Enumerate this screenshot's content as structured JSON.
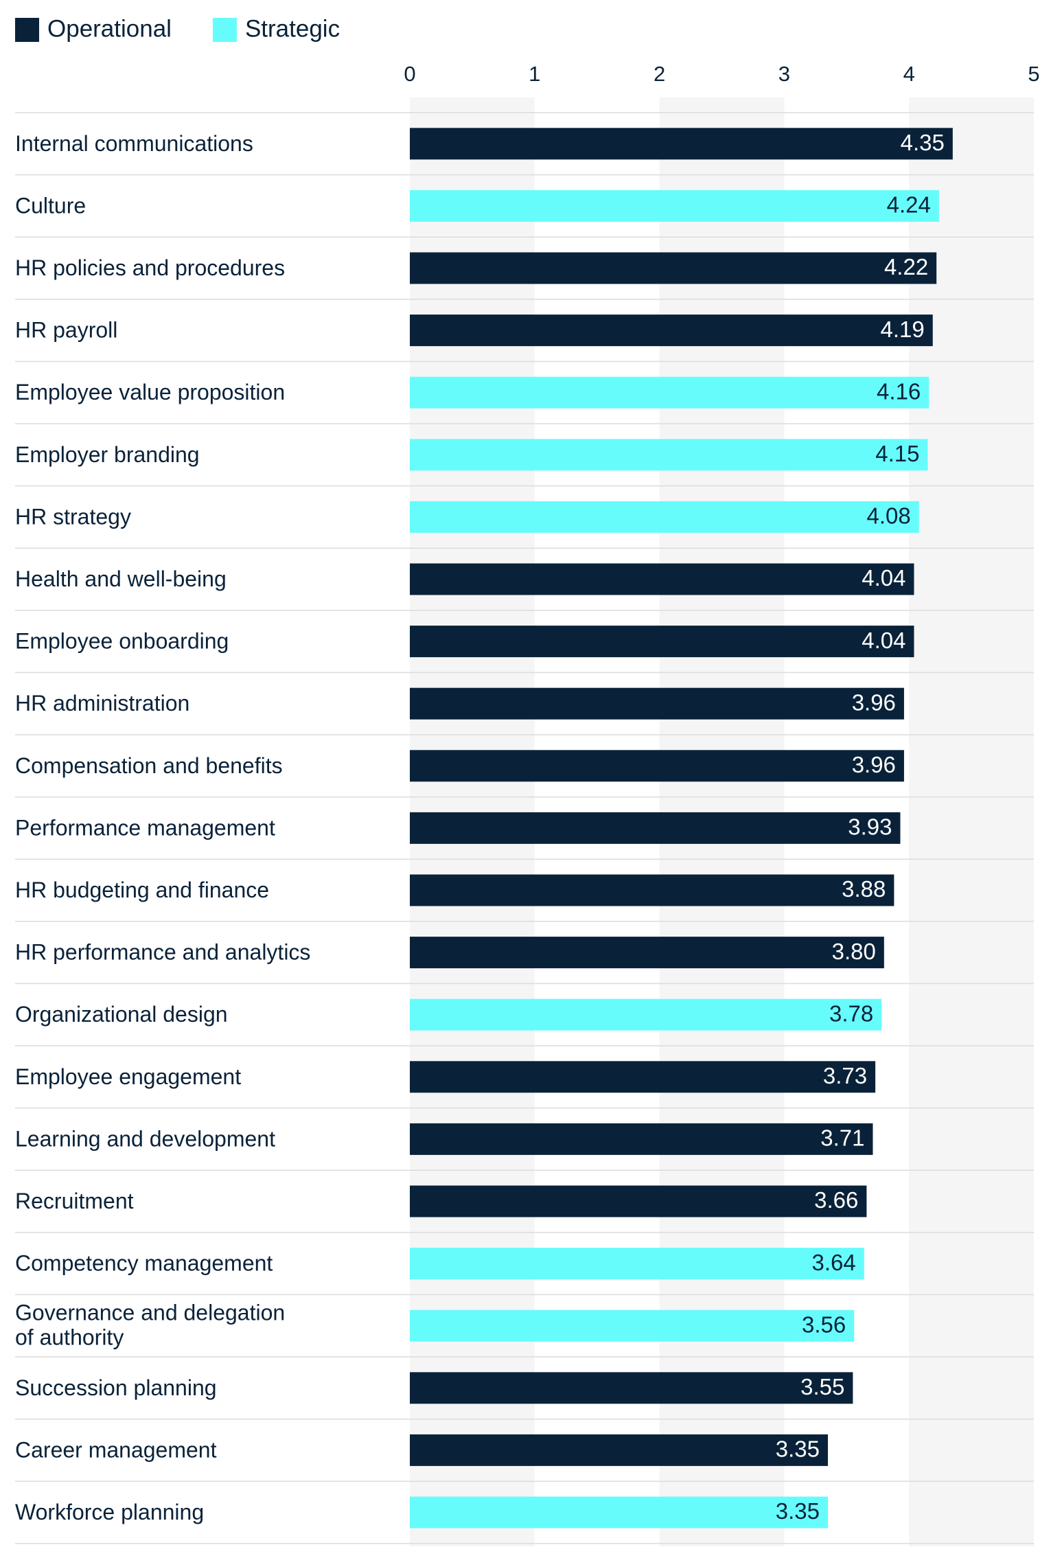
{
  "chart_data": {
    "type": "hbar",
    "categories": [
      "Internal communications",
      "Culture",
      "HR policies and procedures",
      "HR payroll",
      "Employee value proposition",
      "Employer branding",
      "HR strategy",
      "Health and well-being",
      "Employee onboarding",
      "HR administration",
      "Compensation and benefits",
      "Performance management",
      "HR budgeting and finance",
      "HR performance and analytics",
      "Organizational design",
      "Employee engagement",
      "Learning and development",
      "Recruitment",
      "Competency management",
      "Governance and delegation\nof authority",
      "Succession planning",
      "Career management",
      "Workforce planning"
    ],
    "series": [
      {
        "name": "Operational",
        "color": "#0a2239",
        "label_color": "#ffffff",
        "values": [
          4.35,
          null,
          4.22,
          4.19,
          null,
          null,
          null,
          4.04,
          4.04,
          3.96,
          3.96,
          3.93,
          3.88,
          3.8,
          null,
          3.73,
          3.71,
          3.66,
          null,
          null,
          3.55,
          3.35,
          null
        ],
        "value_labels": [
          "4.35",
          null,
          "4.22",
          "4.19",
          null,
          null,
          null,
          "4.04",
          "4.04",
          "3.96",
          "3.96",
          "3.93",
          "3.88",
          "3.80",
          null,
          "3.73",
          "3.71",
          "3.66",
          null,
          null,
          "3.55",
          "3.35",
          null
        ]
      },
      {
        "name": "Strategic",
        "color": "#66fcfc",
        "label_color": "#0a2239",
        "values": [
          null,
          4.24,
          null,
          null,
          4.16,
          4.15,
          4.08,
          null,
          null,
          null,
          null,
          null,
          null,
          null,
          3.78,
          null,
          null,
          null,
          3.64,
          3.56,
          null,
          null,
          3.35
        ],
        "value_labels": [
          null,
          "4.24",
          null,
          null,
          "4.16",
          "4.15",
          "4.08",
          null,
          null,
          null,
          null,
          null,
          null,
          null,
          "3.78",
          null,
          null,
          null,
          "3.64",
          "3.56",
          null,
          null,
          "3.35"
        ]
      }
    ],
    "xlim": [
      0,
      5
    ],
    "xticks": [
      0,
      1,
      2,
      3,
      4,
      5
    ],
    "grid": true,
    "legend": "top-left"
  }
}
